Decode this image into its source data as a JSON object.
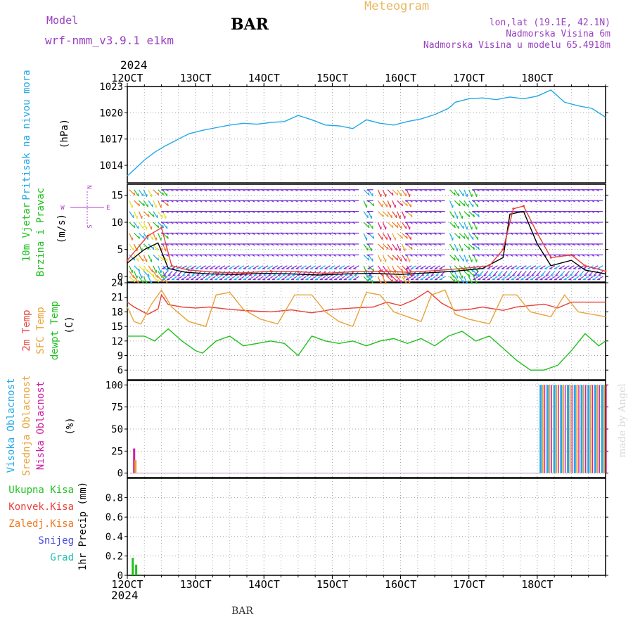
{
  "header": {
    "model_label": "Model",
    "model_name": "wrf-nmm_v3.9.1 e1km",
    "station": "BAR",
    "title": "Meteogram",
    "location": "lon,lat (19.1E, 42.1N)",
    "elevation": "Nadmorska Visina 6m",
    "model_elevation": "Nadmorska Visina u modelu 65.4918m",
    "year": "2024",
    "footer_station": "BAR",
    "credit": "made by Angel"
  },
  "colors": {
    "pressure": "#22a8e8",
    "temp2m": "#e8403a",
    "sfc": "#e8a33a",
    "dewpt": "#20c020",
    "high_cloud": "#22a8e8",
    "mid_cloud": "#e8a33a",
    "low_cloud": "#d020a0",
    "precip_total": "#20c020",
    "precip_conv": "#e8403a",
    "freezing": "#f07820",
    "snow": "#4848e0",
    "hail": "#20c0b0",
    "wind_label": "#20c020",
    "wind_speed": "#000000",
    "wind_gust": "#e8403a",
    "compass": "#b040d0",
    "header_purple": "#9a40c0",
    "title_orange": "#e8b860"
  },
  "chart_data": {
    "x_ticks": [
      "12OCT",
      "13OCT",
      "14OCT",
      "15OCT",
      "16OCT",
      "17OCT",
      "18OCT"
    ],
    "panels": [
      {
        "id": "pressure",
        "type": "line",
        "ylabel_lines": [
          "Pritisak na nivou mora"
        ],
        "unit": "(hPa)",
        "ylim": [
          1012,
          1023
        ],
        "yticks": [
          1014,
          1017,
          1020,
          1023
        ],
        "grid": true,
        "series": [
          {
            "name": "Pritisak na nivou mora",
            "x": [
              0,
              0.1,
              0.25,
              0.4,
              0.55,
              0.7,
              0.9,
              1.1,
              1.3,
              1.5,
              1.7,
              1.9,
              2.1,
              2.3,
              2.5,
              2.7,
              2.9,
              3.1,
              3.3,
              3.5,
              3.7,
              3.9,
              4.1,
              4.3,
              4.5,
              4.7,
              4.8,
              5.0,
              5.2,
              5.4,
              5.6,
              5.8,
              6.0,
              6.2,
              6.4,
              6.6,
              6.8,
              7.0
            ],
            "y": [
              1012.8,
              1013.5,
              1014.6,
              1015.5,
              1016.2,
              1016.8,
              1017.6,
              1018.0,
              1018.3,
              1018.6,
              1018.8,
              1018.7,
              1018.9,
              1019.0,
              1019.7,
              1019.2,
              1018.6,
              1018.5,
              1018.2,
              1019.2,
              1018.8,
              1018.6,
              1019.0,
              1019.3,
              1019.8,
              1020.5,
              1021.2,
              1021.6,
              1021.7,
              1021.5,
              1021.8,
              1021.6,
              1021.9,
              1022.6,
              1021.2,
              1020.8,
              1020.5,
              1019.5
            ]
          }
        ]
      },
      {
        "id": "wind",
        "type": "line",
        "ylabel_lines": [
          "10m Vjetar",
          "Brzina i Pravac"
        ],
        "unit": "(m/s)",
        "ylim": [
          -1,
          17
        ],
        "yticks": [
          0,
          5,
          10,
          15
        ],
        "grid": true,
        "compass": {
          "north": "N",
          "south": "S",
          "east": "E",
          "west": "W"
        },
        "series": [
          {
            "name": "speed",
            "x": [
              0,
              0.25,
              0.45,
              0.6,
              0.85,
              1.2,
              1.6,
              2.0,
              2.4,
              2.8,
              3.2,
              3.6,
              4.0,
              4.4,
              4.8,
              5.2,
              5.5,
              5.6,
              5.8,
              6.0,
              6.2,
              6.5,
              6.7,
              7.0
            ],
            "y": [
              2.5,
              5.0,
              6.2,
              1.5,
              0.8,
              0.5,
              0.4,
              0.6,
              0.5,
              0.3,
              0.5,
              0.6,
              0.4,
              0.7,
              1.0,
              1.5,
              3.5,
              11.5,
              12.0,
              6.0,
              2.0,
              3.0,
              1.2,
              0.5
            ]
          },
          {
            "name": "gust",
            "x": [
              0,
              0.3,
              0.5,
              0.65,
              0.9,
              1.3,
              1.7,
              2.1,
              2.5,
              2.9,
              3.3,
              3.7,
              4.1,
              4.5,
              4.9,
              5.3,
              5.5,
              5.65,
              5.8,
              6.0,
              6.2,
              6.5,
              6.7,
              7.0
            ],
            "y": [
              3.0,
              7.5,
              9.0,
              2.0,
              1.2,
              0.8,
              0.7,
              1.0,
              0.9,
              0.6,
              0.9,
              1.0,
              0.8,
              1.1,
              1.5,
              2.0,
              5.0,
              12.5,
              13.0,
              8.0,
              3.5,
              4.0,
              2.0,
              1.0
            ]
          }
        ],
        "arrows": {
          "rows_y": [
            0,
            1,
            2,
            4,
            6,
            8,
            10,
            12,
            14,
            16
          ],
          "step_days": 0.07,
          "calm_color": "#7a30e0",
          "strong_blocks": [
            {
              "x": [
                0.0,
                0.55
              ],
              "color_cycle": [
                "#e8e020",
                "#f07820",
                "#20c020",
                "#22a8e8"
              ]
            },
            {
              "x": [
                3.45,
                3.55
              ],
              "color_cycle": [
                "#22a8e8",
                "#20c020"
              ]
            },
            {
              "x": [
                3.6,
                4.1
              ],
              "color_cycle": [
                "#e8a33a",
                "#f07820",
                "#e8403a",
                "#e02080"
              ]
            },
            {
              "x": [
                4.7,
                5.1
              ],
              "color_cycle": [
                "#20c020",
                "#22a8e8",
                "#20c020"
              ]
            }
          ]
        }
      },
      {
        "id": "temperature",
        "type": "line",
        "ylabel_lines": [
          "2m Temp",
          "SFC Temp",
          "dewpt Temp"
        ],
        "unit": "(C)",
        "ylim": [
          4,
          24
        ],
        "yticks": [
          6,
          9,
          12,
          15,
          18,
          21,
          24
        ],
        "grid": true,
        "series": [
          {
            "name": "2m Temp",
            "x": [
              0,
              0.1,
              0.3,
              0.45,
              0.5,
              0.6,
              0.8,
              1.0,
              1.2,
              1.5,
              1.8,
              2.1,
              2.4,
              2.7,
              3.0,
              3.3,
              3.6,
              3.8,
              4.0,
              4.2,
              4.4,
              4.6,
              4.8,
              5.0,
              5.2,
              5.5,
              5.7,
              5.9,
              6.1,
              6.3,
              6.5,
              6.7,
              7.0
            ],
            "y": [
              20,
              19,
              17.5,
              18.6,
              21.5,
              19.5,
              19,
              18.8,
              19,
              18.5,
              18.2,
              18,
              18.4,
              17.8,
              18.5,
              18.8,
              19.0,
              20.0,
              19.3,
              20.5,
              22.3,
              19.8,
              18.3,
              18.5,
              19.0,
              18.3,
              19.0,
              19.3,
              19.6,
              18.8,
              20.0,
              20.0,
              20.0
            ]
          },
          {
            "name": "SFC Temp",
            "x": [
              0,
              0.1,
              0.2,
              0.35,
              0.5,
              0.65,
              0.9,
              1.15,
              1.3,
              1.5,
              1.7,
              1.95,
              2.2,
              2.45,
              2.7,
              2.9,
              3.1,
              3.3,
              3.5,
              3.7,
              3.9,
              4.1,
              4.3,
              4.45,
              4.65,
              4.8,
              5.0,
              5.3,
              5.5,
              5.7,
              5.9,
              6.2,
              6.4,
              6.6,
              7.0
            ],
            "y": [
              19,
              16,
              15.5,
              19.5,
              22.5,
              19,
              16,
              15,
              21.5,
              22,
              18.5,
              16.5,
              15.5,
              21.5,
              21.5,
              18,
              16,
              15,
              22,
              21.5,
              18,
              17,
              16,
              21.5,
              22.5,
              17.5,
              16.5,
              15.5,
              21.5,
              21.5,
              18,
              17,
              21.5,
              18,
              17
            ]
          },
          {
            "name": "dewpt Temp",
            "x": [
              0,
              0.1,
              0.25,
              0.4,
              0.6,
              0.8,
              0.9,
              1.0,
              1.1,
              1.3,
              1.5,
              1.7,
              1.9,
              2.1,
              2.3,
              2.5,
              2.7,
              2.9,
              3.1,
              3.3,
              3.5,
              3.7,
              3.9,
              4.1,
              4.3,
              4.5,
              4.7,
              4.9,
              5.1,
              5.3,
              5.5,
              5.7,
              5.9,
              6.1,
              6.3,
              6.5,
              6.7,
              6.9,
              7.0
            ],
            "y": [
              13,
              13,
              13,
              12,
              14.5,
              12,
              11,
              10,
              9.5,
              12,
              13,
              11,
              11.5,
              12,
              11.5,
              9,
              13,
              12,
              11.5,
              12,
              11,
              12,
              12.5,
              11.5,
              12.5,
              11,
              13,
              14,
              12,
              13,
              10.5,
              8,
              6,
              6,
              7,
              10,
              13.5,
              11,
              12
            ]
          }
        ]
      },
      {
        "id": "cloud",
        "type": "bar",
        "ylabel_lines": [
          "Visoka Oblacnost",
          "Srednja Oblacnost",
          "Niska Oblacnost"
        ],
        "unit": "(%)",
        "ylim": [
          -5,
          105
        ],
        "yticks": [
          0,
          25,
          50,
          75,
          100
        ],
        "grid": true,
        "series": [
          {
            "name": "Niska Oblacnost",
            "bars": [
              [
                0.1,
                28
              ]
            ]
          },
          {
            "name": "Srednja Oblacnost",
            "bars": [
              [
                0.12,
                15
              ]
            ]
          },
          {
            "name": "Visoka Oblacnost",
            "bars": [
              [
                6.05,
                100
              ],
              [
                6.15,
                100
              ],
              [
                6.25,
                100
              ],
              [
                6.35,
                100
              ],
              [
                6.45,
                100
              ],
              [
                6.55,
                100
              ],
              [
                6.65,
                100
              ],
              [
                6.75,
                100
              ],
              [
                6.85,
                100
              ],
              [
                6.95,
                100
              ]
            ]
          }
        ]
      },
      {
        "id": "precip",
        "type": "bar",
        "ylabel_lines": [
          "Ukupna Kisa",
          "Konvek.Kisa",
          "Zaledj.Kisa",
          "Snijeg",
          "Grad"
        ],
        "unit": "1hr Precip (mm)",
        "ylim": [
          0,
          1.0
        ],
        "yticks": [
          0,
          0.2,
          0.4,
          0.6,
          0.8
        ],
        "grid": true,
        "series": [
          {
            "name": "Ukupna Kisa",
            "bars": [
              [
                0.08,
                0.18
              ],
              [
                0.13,
                0.11
              ],
              [
                0.18,
                0.01
              ]
            ]
          }
        ]
      }
    ]
  }
}
